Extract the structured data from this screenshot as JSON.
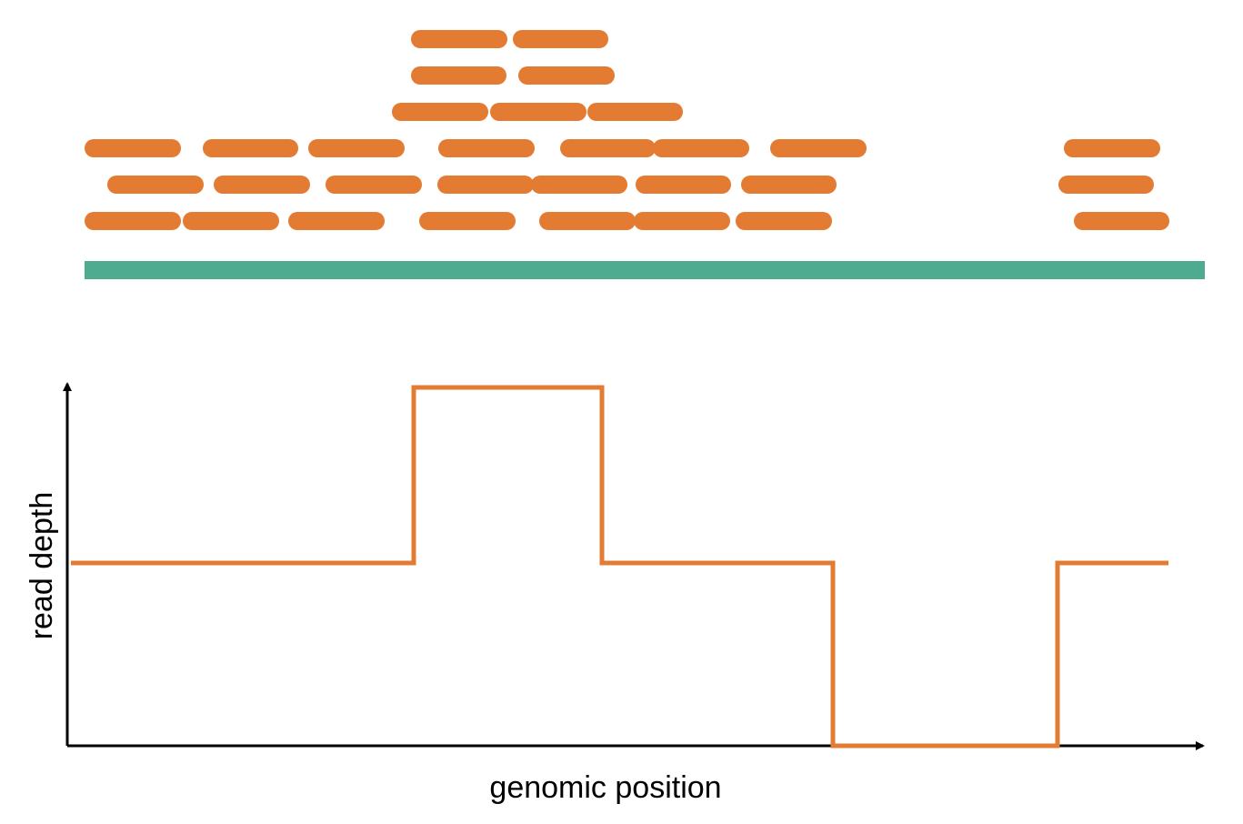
{
  "figure": {
    "x_axis_label": "genomic position",
    "y_axis_label": "read depth"
  },
  "colors": {
    "read": "#E47B33",
    "reference": "#4FAB8F",
    "depth_line": "#E47B33",
    "axis": "#000000"
  },
  "reads": {
    "description_note": "",
    "count": 33
  },
  "depth_profile": {
    "levels": [
      "baseline",
      "high",
      "baseline",
      "zero",
      "baseline"
    ]
  }
}
